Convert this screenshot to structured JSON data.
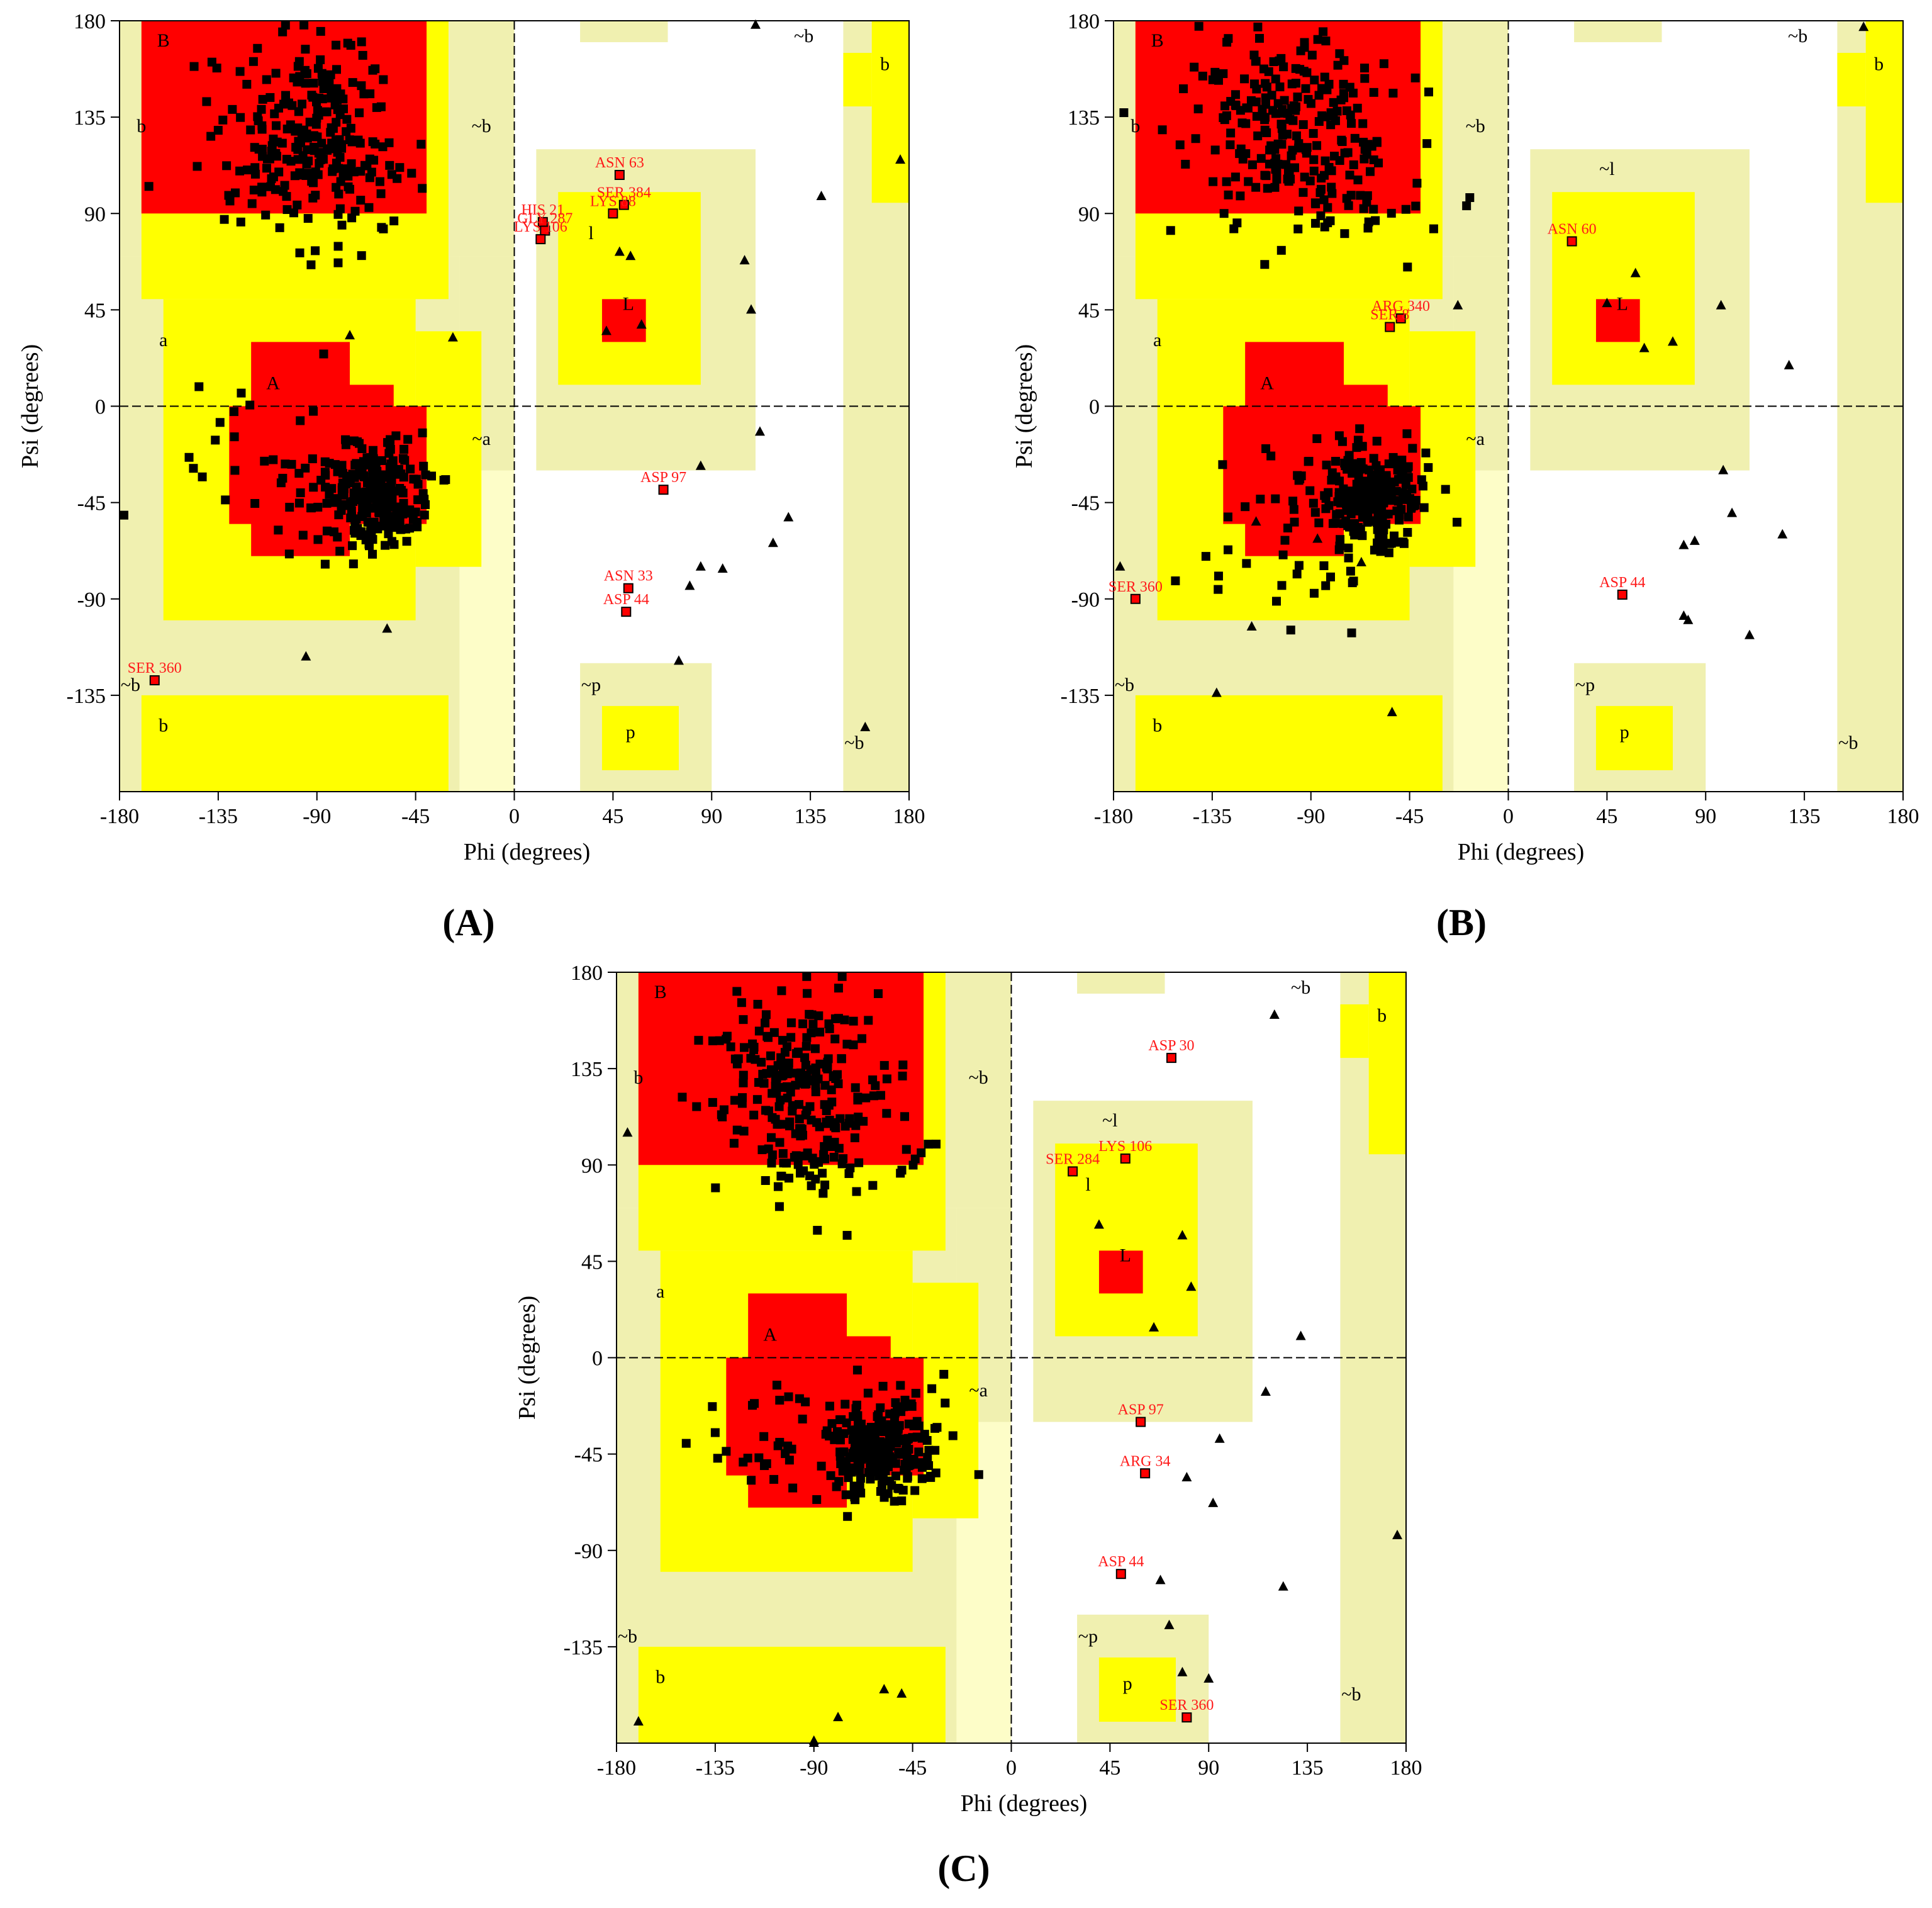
{
  "colors": {
    "core": "#ff0000",
    "allowed": "#ffff00",
    "generous": "#f0f0b0",
    "outer": "#fdfdc8",
    "background": "#ffffff",
    "outlier": "#ff1a1a",
    "point": "#000000"
  },
  "panel_labels": [
    "(A)",
    "(B)",
    "(C)"
  ],
  "chart_data": [
    {
      "type": "scatter",
      "panel": "(A)",
      "xlabel": "Phi (degrees)",
      "ylabel": "Psi (degrees)",
      "xlim": [
        -180,
        180
      ],
      "ylim": [
        -180,
        180
      ],
      "xticks": [
        -180,
        -135,
        -90,
        -45,
        0,
        45,
        90,
        135,
        180
      ],
      "yticks": [
        180,
        135,
        90,
        45,
        0,
        -45,
        -90,
        -135
      ],
      "grid": false,
      "region_labels": [
        {
          "text": "B",
          "phi": -160,
          "psi": 168
        },
        {
          "text": "b",
          "phi": -170,
          "psi": 128
        },
        {
          "text": "~b",
          "phi": -15,
          "psi": 128
        },
        {
          "text": "a",
          "phi": -160,
          "psi": 28
        },
        {
          "text": "A",
          "phi": -110,
          "psi": 8
        },
        {
          "text": "~a",
          "phi": -15,
          "psi": -18
        },
        {
          "text": "l",
          "phi": 35,
          "psi": 78
        },
        {
          "text": "L",
          "phi": 52,
          "psi": 45
        },
        {
          "text": "~b",
          "phi": 132,
          "psi": 170
        },
        {
          "text": "b",
          "phi": 169,
          "psi": 157
        },
        {
          "text": "~b",
          "phi": -175,
          "psi": -133
        },
        {
          "text": "b",
          "phi": -160,
          "psi": -152
        },
        {
          "text": "~p",
          "phi": 35,
          "psi": -133
        },
        {
          "text": "p",
          "phi": 53,
          "psi": -155
        },
        {
          "text": "~b",
          "phi": 155,
          "psi": -160
        }
      ],
      "outliers": [
        {
          "label": "ASN 63",
          "phi": 48,
          "psi": 108
        },
        {
          "label": "SER 384",
          "phi": 50,
          "psi": 94
        },
        {
          "label": "LYS 88",
          "phi": 45,
          "psi": 90
        },
        {
          "label": "HIS 21",
          "phi": 13,
          "psi": 86
        },
        {
          "label": "GLY 287",
          "phi": 14,
          "psi": 82
        },
        {
          "label": "LYS 106",
          "phi": 12,
          "psi": 78
        },
        {
          "label": "ASP 97",
          "phi": 68,
          "psi": -39
        },
        {
          "label": "ASN 33",
          "phi": 52,
          "psi": -85
        },
        {
          "label": "ASP 44",
          "phi": 51,
          "psi": -96
        },
        {
          "label": "SER 360",
          "phi": -164,
          "psi": -128
        }
      ],
      "glycine_points": [
        [
          110,
          178
        ],
        [
          140,
          98
        ],
        [
          105,
          68
        ],
        [
          108,
          45
        ],
        [
          112,
          -12
        ],
        [
          85,
          -28
        ],
        [
          125,
          -52
        ],
        [
          118,
          -64
        ],
        [
          85,
          -75
        ],
        [
          95,
          -76
        ],
        [
          80,
          -84
        ],
        [
          75,
          -119
        ],
        [
          160,
          -150
        ],
        [
          53,
          70
        ],
        [
          48,
          72
        ],
        [
          58,
          38
        ],
        [
          42,
          35
        ],
        [
          -95,
          -117
        ],
        [
          -58,
          -104
        ],
        [
          -28,
          32
        ],
        [
          -75,
          33
        ],
        [
          176,
          115
        ]
      ],
      "clusters": [
        {
          "phi": -95,
          "psi": 130,
          "sphi": 20,
          "spsi": 22,
          "n": 220
        },
        {
          "phi": -65,
          "psi": -42,
          "sphi": 12,
          "spsi": 12,
          "n": 240
        },
        {
          "phi": -75,
          "psi": 95,
          "sphi": 25,
          "spsi": 15,
          "n": 35
        },
        {
          "phi": -110,
          "psi": -30,
          "sphi": 25,
          "spsi": 20,
          "n": 35
        }
      ]
    },
    {
      "type": "scatter",
      "panel": "(B)",
      "xlabel": "Phi (degrees)",
      "ylabel": "Psi (degrees)",
      "xlim": [
        -180,
        180
      ],
      "ylim": [
        -180,
        180
      ],
      "xticks": [
        -180,
        -135,
        -90,
        -45,
        0,
        45,
        90,
        135,
        180
      ],
      "yticks": [
        180,
        135,
        90,
        45,
        0,
        -45,
        -90,
        -135
      ],
      "grid": false,
      "region_labels": [
        {
          "text": "B",
          "phi": -160,
          "psi": 168
        },
        {
          "text": "b",
          "phi": -170,
          "psi": 128
        },
        {
          "text": "~b",
          "phi": -15,
          "psi": 128
        },
        {
          "text": "a",
          "phi": -160,
          "psi": 28
        },
        {
          "text": "A",
          "phi": -110,
          "psi": 8
        },
        {
          "text": "~a",
          "phi": -15,
          "psi": -18
        },
        {
          "text": "~l",
          "phi": 45,
          "psi": 108
        },
        {
          "text": "L",
          "phi": 52,
          "psi": 45
        },
        {
          "text": "~b",
          "phi": 132,
          "psi": 170
        },
        {
          "text": "b",
          "phi": 169,
          "psi": 157
        },
        {
          "text": "~b",
          "phi": -175,
          "psi": -133
        },
        {
          "text": "b",
          "phi": -160,
          "psi": -152
        },
        {
          "text": "~p",
          "phi": 35,
          "psi": -133
        },
        {
          "text": "p",
          "phi": 53,
          "psi": -155
        },
        {
          "text": "~b",
          "phi": 155,
          "psi": -160
        }
      ],
      "outliers": [
        {
          "label": "ASN 60",
          "phi": 29,
          "psi": 77
        },
        {
          "label": "ARG 340",
          "phi": -49,
          "psi": 41
        },
        {
          "label": "SER 8",
          "phi": -54,
          "psi": 37
        },
        {
          "label": "SER 360",
          "phi": -170,
          "psi": -90
        },
        {
          "label": "ASP 44",
          "phi": 52,
          "psi": -88
        }
      ],
      "glycine_points": [
        [
          162,
          177
        ],
        [
          45,
          48
        ],
        [
          58,
          62
        ],
        [
          62,
          27
        ],
        [
          75,
          30
        ],
        [
          97,
          47
        ],
        [
          128,
          19
        ],
        [
          98,
          -30
        ],
        [
          102,
          -50
        ],
        [
          125,
          -60
        ],
        [
          80,
          -65
        ],
        [
          85,
          -63
        ],
        [
          82,
          -100
        ],
        [
          80,
          -98
        ],
        [
          110,
          -107
        ],
        [
          -53,
          -143
        ],
        [
          -67,
          -73
        ],
        [
          -117,
          -103
        ],
        [
          -133,
          -134
        ],
        [
          -177,
          -75
        ],
        [
          -23,
          47
        ],
        [
          -115,
          -54
        ],
        [
          -87,
          -62
        ]
      ],
      "clusters": [
        {
          "phi": -95,
          "psi": 130,
          "sphi": 22,
          "spsi": 22,
          "n": 220
        },
        {
          "phi": -62,
          "psi": -42,
          "sphi": 12,
          "spsi": 12,
          "n": 240
        },
        {
          "phi": -75,
          "psi": 90,
          "sphi": 25,
          "spsi": 15,
          "n": 35
        },
        {
          "phi": -100,
          "psi": -65,
          "sphi": 25,
          "spsi": 22,
          "n": 40
        }
      ]
    },
    {
      "type": "scatter",
      "panel": "(C)",
      "xlabel": "Phi (degrees)",
      "ylabel": "Psi (degrees)",
      "xlim": [
        -180,
        180
      ],
      "ylim": [
        -180,
        180
      ],
      "xticks": [
        -180,
        -135,
        -90,
        -45,
        0,
        45,
        90,
        135,
        180
      ],
      "yticks": [
        180,
        135,
        90,
        45,
        0,
        -45,
        -90,
        -135
      ],
      "grid": false,
      "region_labels": [
        {
          "text": "B",
          "phi": -160,
          "psi": 168
        },
        {
          "text": "b",
          "phi": -170,
          "psi": 128
        },
        {
          "text": "~b",
          "phi": -15,
          "psi": 128
        },
        {
          "text": "a",
          "phi": -160,
          "psi": 28
        },
        {
          "text": "A",
          "phi": -110,
          "psi": 8
        },
        {
          "text": "~a",
          "phi": -15,
          "psi": -18
        },
        {
          "text": "~l",
          "phi": 45,
          "psi": 108
        },
        {
          "text": "l",
          "phi": 35,
          "psi": 78
        },
        {
          "text": "L",
          "phi": 52,
          "psi": 45
        },
        {
          "text": "~b",
          "phi": 132,
          "psi": 170
        },
        {
          "text": "b",
          "phi": 169,
          "psi": 157
        },
        {
          "text": "~b",
          "phi": -175,
          "psi": -133
        },
        {
          "text": "b",
          "phi": -160,
          "psi": -152
        },
        {
          "text": "~p",
          "phi": 35,
          "psi": -133
        },
        {
          "text": "p",
          "phi": 53,
          "psi": -155
        },
        {
          "text": "~b",
          "phi": 155,
          "psi": -160
        }
      ],
      "outliers": [
        {
          "label": "ASP 30",
          "phi": 73,
          "psi": 140
        },
        {
          "label": "LYS 106",
          "phi": 52,
          "psi": 93
        },
        {
          "label": "SER 284",
          "phi": 28,
          "psi": 87
        },
        {
          "label": "ASP 97",
          "phi": 59,
          "psi": -30
        },
        {
          "label": "ARG 34",
          "phi": 61,
          "psi": -54
        },
        {
          "label": "ASP 44",
          "phi": 50,
          "psi": -101
        },
        {
          "label": "SER 360",
          "phi": 80,
          "psi": -168
        }
      ],
      "glycine_points": [
        [
          120,
          160
        ],
        [
          40,
          62
        ],
        [
          78,
          57
        ],
        [
          82,
          33
        ],
        [
          65,
          14
        ],
        [
          132,
          10
        ],
        [
          116,
          -16
        ],
        [
          95,
          -38
        ],
        [
          80,
          -56
        ],
        [
          92,
          -68
        ],
        [
          176,
          -83
        ],
        [
          68,
          -104
        ],
        [
          124,
          -107
        ],
        [
          72,
          -125
        ],
        [
          78,
          -147
        ],
        [
          90,
          -150
        ],
        [
          -50,
          -157
        ],
        [
          -58,
          -155
        ],
        [
          -79,
          -168
        ],
        [
          -90,
          -179
        ],
        [
          -90,
          -180
        ],
        [
          -170,
          -170
        ],
        [
          -175,
          105
        ]
      ],
      "clusters": [
        {
          "phi": -95,
          "psi": 128,
          "sphi": 22,
          "spsi": 22,
          "n": 220
        },
        {
          "phi": -60,
          "psi": -42,
          "sphi": 12,
          "spsi": 12,
          "n": 240
        },
        {
          "phi": -80,
          "psi": 88,
          "sphi": 25,
          "spsi": 15,
          "n": 35
        },
        {
          "phi": -105,
          "psi": -40,
          "sphi": 25,
          "spsi": 18,
          "n": 35
        }
      ]
    }
  ]
}
